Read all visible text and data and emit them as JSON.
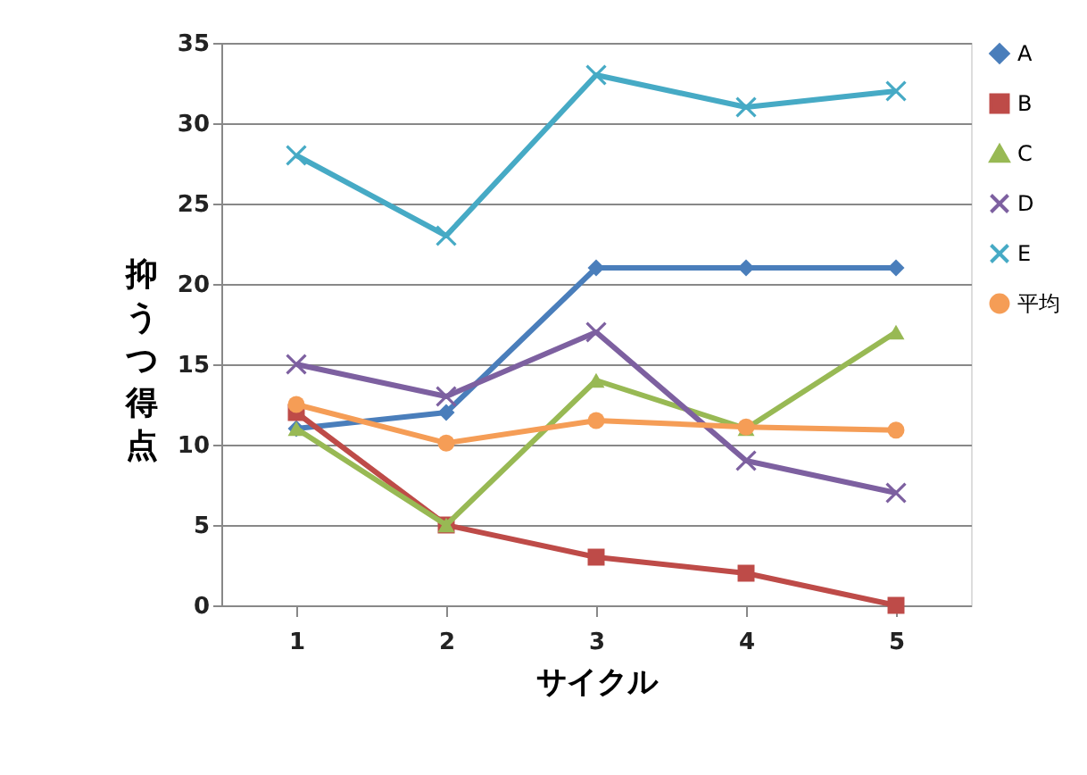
{
  "chart_data": {
    "type": "line",
    "xlabel": "サイクル",
    "ylabel": "抑うつ得点",
    "categories": [
      "1",
      "2",
      "3",
      "4",
      "5"
    ],
    "series": [
      {
        "name": "A",
        "color": "#4a7ebb",
        "marker": "diamond",
        "values": [
          11,
          12,
          21,
          21,
          21
        ]
      },
      {
        "name": "B",
        "color": "#be4b48",
        "marker": "square",
        "values": [
          12,
          5,
          3,
          2,
          0
        ]
      },
      {
        "name": "C",
        "color": "#98b954",
        "marker": "triangle",
        "values": [
          11,
          5,
          14,
          11,
          17
        ]
      },
      {
        "name": "D",
        "color": "#7d60a0",
        "marker": "cross",
        "values": [
          15,
          13,
          17,
          9,
          7
        ]
      },
      {
        "name": "E",
        "color": "#46aac5",
        "marker": "cross",
        "values": [
          28,
          23,
          33,
          31,
          32
        ]
      },
      {
        "name": "平均",
        "color": "#f59d56",
        "marker": "circle",
        "values": [
          12.5,
          10.1,
          11.5,
          11.1,
          10.9
        ]
      }
    ],
    "ylim": [
      0,
      35
    ],
    "yticks": [
      0,
      5,
      10,
      15,
      20,
      25,
      30,
      35
    ],
    "grid": "y",
    "legend": "right",
    "line_style": "solid"
  }
}
